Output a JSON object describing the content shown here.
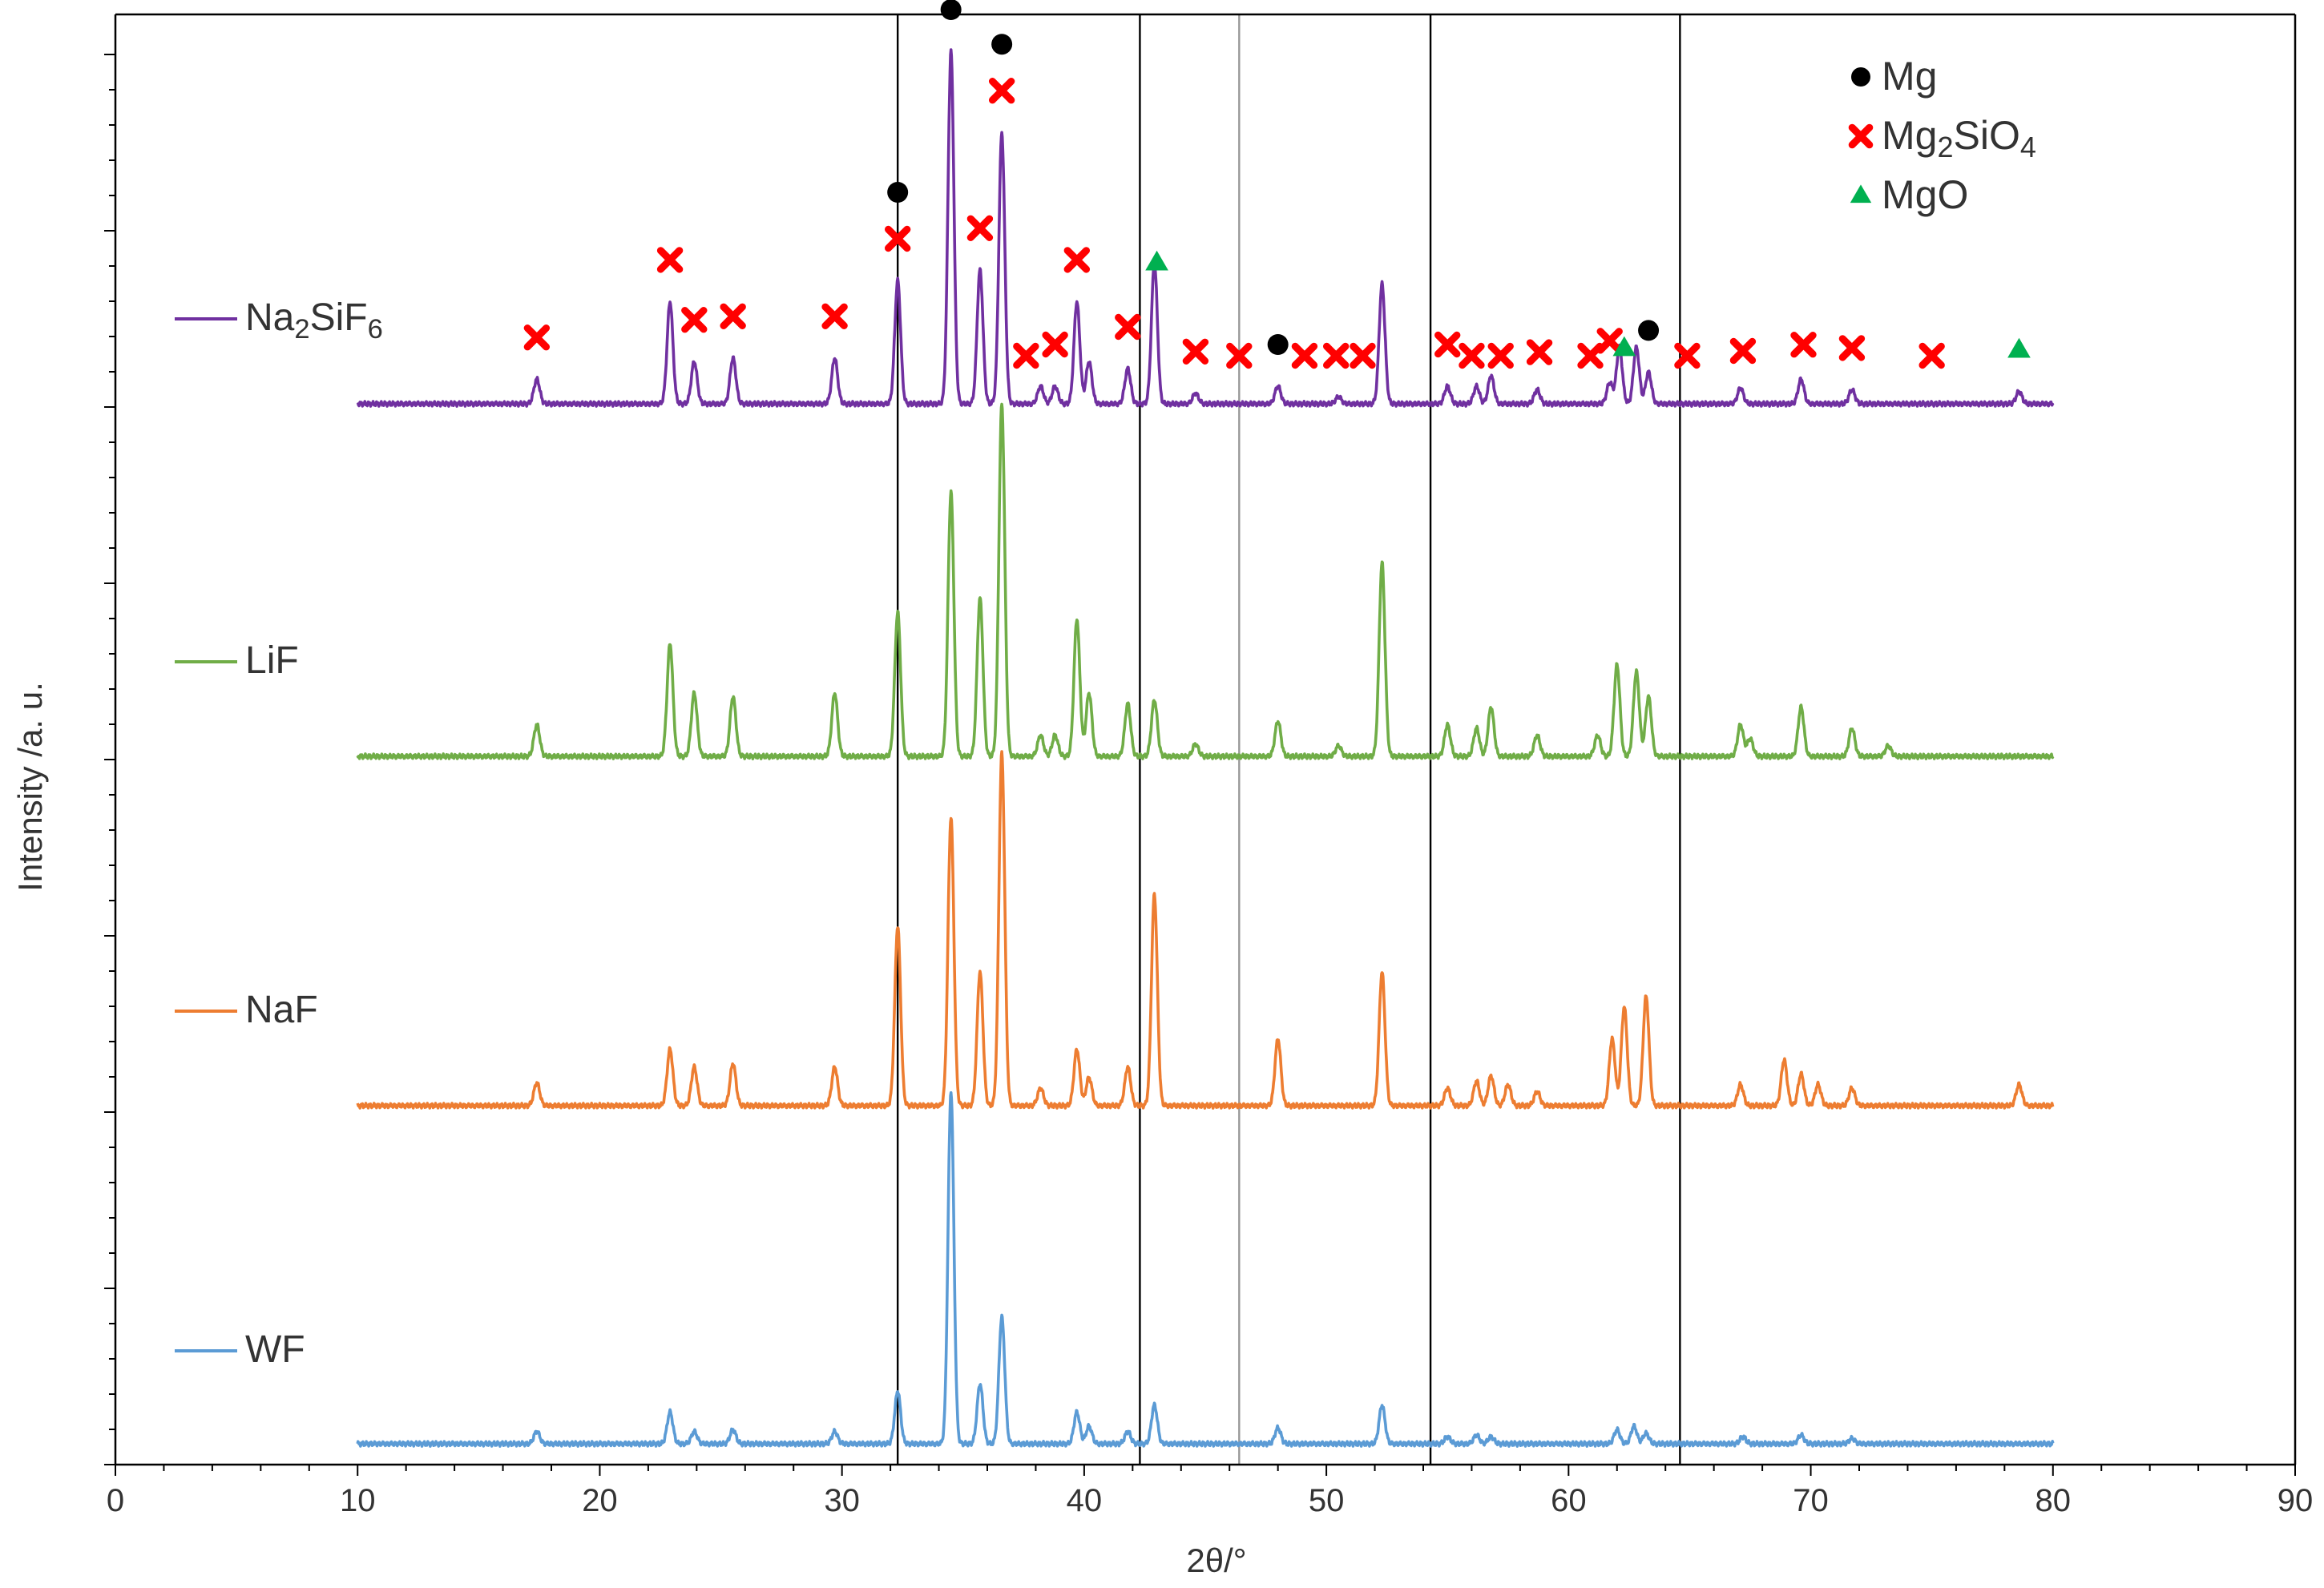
{
  "chart_data": {
    "type": "line",
    "title": "",
    "xlabel": "2θ/°",
    "ylabel": "Intensity /a. u.",
    "xlim": [
      0,
      90
    ],
    "x_ticks": [
      0,
      10,
      20,
      30,
      40,
      50,
      60,
      70,
      80,
      90
    ],
    "x_tick_labels": [
      "0",
      "10",
      "20",
      "30",
      "40",
      "50",
      "60",
      "70",
      "80",
      "90"
    ],
    "y_ticks_labeled": false,
    "grid": false,
    "legend_placement": "top-right",
    "x_range_of_patterns": [
      10,
      80
    ],
    "reference_lines": [
      {
        "x": 32.3,
        "color": "#000000"
      },
      {
        "x": 42.3,
        "color": "#000000"
      },
      {
        "x": 46.4,
        "color": "#999999"
      },
      {
        "x": 54.3,
        "color": "#000000"
      },
      {
        "x": 64.6,
        "color": "#000000"
      }
    ],
    "series": [
      {
        "name": "WF",
        "label_parts": [
          {
            "t": "WF"
          }
        ],
        "color": "#5b9bd5",
        "peaks": [
          [
            17.4,
            0.035
          ],
          [
            22.9,
            0.09
          ],
          [
            23.9,
            0.035
          ],
          [
            25.5,
            0.04
          ],
          [
            29.7,
            0.035
          ],
          [
            32.3,
            0.15
          ],
          [
            34.5,
            1.0
          ],
          [
            35.7,
            0.17
          ],
          [
            36.6,
            0.36
          ],
          [
            39.7,
            0.09
          ],
          [
            40.2,
            0.05
          ],
          [
            41.8,
            0.035
          ],
          [
            42.9,
            0.11
          ],
          [
            48.0,
            0.045
          ],
          [
            52.3,
            0.11
          ],
          [
            55.0,
            0.02
          ],
          [
            56.2,
            0.025
          ],
          [
            56.8,
            0.02
          ],
          [
            62.0,
            0.04
          ],
          [
            62.7,
            0.05
          ],
          [
            63.2,
            0.03
          ],
          [
            67.2,
            0.02
          ],
          [
            69.6,
            0.025
          ],
          [
            71.7,
            0.015
          ]
        ]
      },
      {
        "name": "NaF",
        "label_parts": [
          {
            "t": "NaF"
          }
        ],
        "color": "#ed7d31",
        "peaks": [
          [
            17.4,
            0.065
          ],
          [
            22.9,
            0.16
          ],
          [
            23.9,
            0.11
          ],
          [
            25.5,
            0.12
          ],
          [
            29.7,
            0.11
          ],
          [
            32.3,
            0.51
          ],
          [
            34.5,
            0.82
          ],
          [
            35.7,
            0.38
          ],
          [
            36.6,
            1.0
          ],
          [
            38.2,
            0.05
          ],
          [
            39.7,
            0.16
          ],
          [
            40.2,
            0.08
          ],
          [
            41.8,
            0.11
          ],
          [
            42.9,
            0.6
          ],
          [
            48.0,
            0.19
          ],
          [
            52.3,
            0.38
          ],
          [
            55.0,
            0.05
          ],
          [
            56.2,
            0.07
          ],
          [
            56.8,
            0.085
          ],
          [
            57.5,
            0.06
          ],
          [
            58.7,
            0.04
          ],
          [
            61.8,
            0.19
          ],
          [
            62.3,
            0.28
          ],
          [
            63.2,
            0.31
          ],
          [
            67.1,
            0.06
          ],
          [
            68.9,
            0.13
          ],
          [
            69.6,
            0.09
          ],
          [
            70.3,
            0.06
          ],
          [
            71.7,
            0.05
          ],
          [
            78.6,
            0.06
          ]
        ]
      },
      {
        "name": "LiF",
        "label_parts": [
          {
            "t": "LiF"
          }
        ],
        "color": "#70ad47",
        "peaks": [
          [
            17.4,
            0.09
          ],
          [
            22.9,
            0.32
          ],
          [
            23.9,
            0.18
          ],
          [
            25.5,
            0.17
          ],
          [
            29.7,
            0.18
          ],
          [
            32.3,
            0.41
          ],
          [
            34.5,
            0.75
          ],
          [
            35.7,
            0.45
          ],
          [
            36.6,
            1.0
          ],
          [
            38.2,
            0.06
          ],
          [
            38.8,
            0.06
          ],
          [
            39.7,
            0.39
          ],
          [
            40.2,
            0.18
          ],
          [
            41.8,
            0.15
          ],
          [
            42.9,
            0.16
          ],
          [
            44.6,
            0.035
          ],
          [
            48.0,
            0.1
          ],
          [
            50.5,
            0.03
          ],
          [
            52.3,
            0.55
          ],
          [
            55.0,
            0.09
          ],
          [
            56.2,
            0.08
          ],
          [
            56.8,
            0.14
          ],
          [
            58.7,
            0.06
          ],
          [
            61.2,
            0.06
          ],
          [
            62.0,
            0.26
          ],
          [
            62.8,
            0.24
          ],
          [
            63.3,
            0.17
          ],
          [
            67.1,
            0.09
          ],
          [
            67.5,
            0.05
          ],
          [
            69.6,
            0.14
          ],
          [
            71.7,
            0.08
          ],
          [
            73.2,
            0.03
          ]
        ]
      },
      {
        "name": "Na₂SiF₆",
        "label_parts": [
          {
            "t": "Na"
          },
          {
            "t": "2",
            "sub": true
          },
          {
            "t": "SiF"
          },
          {
            "t": "6",
            "sub": true
          }
        ],
        "color": "#7030a0",
        "peaks": [
          [
            17.4,
            0.07
          ],
          [
            22.9,
            0.29
          ],
          [
            23.9,
            0.12
          ],
          [
            25.5,
            0.13
          ],
          [
            29.7,
            0.13
          ],
          [
            32.3,
            0.35
          ],
          [
            34.5,
            1.0
          ],
          [
            35.7,
            0.38
          ],
          [
            36.6,
            0.77
          ],
          [
            38.2,
            0.05
          ],
          [
            38.8,
            0.05
          ],
          [
            39.7,
            0.29
          ],
          [
            40.2,
            0.12
          ],
          [
            41.8,
            0.1
          ],
          [
            42.9,
            0.4
          ],
          [
            44.6,
            0.03
          ],
          [
            48.0,
            0.05
          ],
          [
            50.5,
            0.02
          ],
          [
            52.3,
            0.34
          ],
          [
            55.0,
            0.05
          ],
          [
            56.2,
            0.05
          ],
          [
            56.8,
            0.08
          ],
          [
            58.7,
            0.04
          ],
          [
            61.7,
            0.06
          ],
          [
            62.1,
            0.16
          ],
          [
            62.8,
            0.16
          ],
          [
            63.3,
            0.09
          ],
          [
            67.1,
            0.045
          ],
          [
            69.6,
            0.07
          ],
          [
            71.7,
            0.04
          ],
          [
            78.6,
            0.035
          ]
        ]
      }
    ],
    "markers": [
      {
        "phase": "Mg",
        "symbol": "circle",
        "color": "#000000",
        "x": [
          34.5,
          36.6,
          32.3,
          48.0,
          63.3
        ]
      },
      {
        "phase": "Mg2SiO4",
        "symbol": "cross",
        "color": "#ff0000",
        "x": [
          17.4,
          22.9,
          23.9,
          25.5,
          29.7,
          32.3,
          35.7,
          36.6,
          37.6,
          38.8,
          39.7,
          41.8,
          44.6,
          46.4,
          49.1,
          50.4,
          51.5,
          55.0,
          56.0,
          57.2,
          58.8,
          60.9,
          61.7,
          64.9,
          67.2,
          69.7,
          71.7,
          75.0
        ]
      },
      {
        "phase": "MgO",
        "symbol": "triangle",
        "color": "#00b050",
        "x": [
          43.0,
          62.3,
          78.6
        ]
      }
    ],
    "legend": [
      {
        "symbol": "circle",
        "color": "#000000",
        "label_parts": [
          {
            "t": "Mg"
          }
        ]
      },
      {
        "symbol": "cross",
        "color": "#ff0000",
        "label_parts": [
          {
            "t": "Mg"
          },
          {
            "t": "2",
            "sub": true
          },
          {
            "t": "SiO"
          },
          {
            "t": "4",
            "sub": true
          }
        ]
      },
      {
        "symbol": "triangle",
        "color": "#00b050",
        "label_parts": [
          {
            "t": "MgO"
          }
        ]
      }
    ]
  }
}
